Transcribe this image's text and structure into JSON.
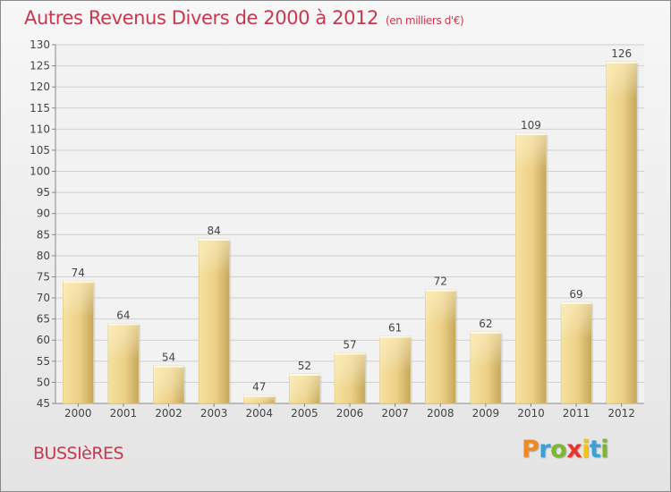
{
  "header": {
    "title": "Autres Revenus Divers de 2000 à 2012",
    "unit": "(en milliers d'€)"
  },
  "footer": {
    "commune": "BUSSIèRES",
    "logo_letters": [
      "P",
      "r",
      "o",
      "x",
      "i",
      "t",
      "i"
    ],
    "logo_colors": [
      "#f08a1e",
      "#3aa0d8",
      "#7cb82f",
      "#e8342c",
      "#f2c318",
      "#3aa0d8",
      "#7cb82f"
    ]
  },
  "colors": {
    "bar": "#ecd087",
    "bar_light": "#f6e29f",
    "bar_dark": "#c6a85a",
    "grid": "#cfcfcf",
    "axis_text": "#444444",
    "title": "#c8384e"
  },
  "chart_data": {
    "type": "bar",
    "categories": [
      "2000",
      "2001",
      "2002",
      "2003",
      "2004",
      "2005",
      "2006",
      "2007",
      "2008",
      "2009",
      "2010",
      "2011",
      "2012"
    ],
    "values": [
      74,
      64,
      54,
      84,
      47,
      52,
      57,
      61,
      72,
      62,
      109,
      69,
      126
    ],
    "ylim": [
      45,
      130
    ],
    "yticks": [
      45,
      50,
      55,
      60,
      65,
      70,
      75,
      80,
      85,
      90,
      95,
      100,
      105,
      110,
      115,
      120,
      125,
      130
    ],
    "grid": true
  }
}
